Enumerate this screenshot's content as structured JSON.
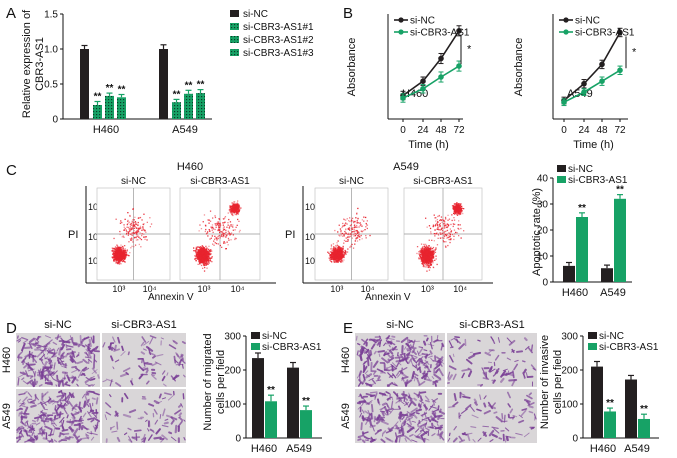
{
  "colors": {
    "black": "#231f20",
    "green": "#17a266",
    "dot_red": "#e8242f",
    "well": "#d9d6d8",
    "stain": "#7a3f96"
  },
  "panel_letters": [
    "A",
    "B",
    "C",
    "D",
    "E"
  ],
  "chart_data": [
    {
      "id": "A",
      "type": "bar",
      "ylabel": [
        "Relative expression of",
        "CBR3-AS1"
      ],
      "categories": [
        "H460",
        "A549"
      ],
      "ylim": [
        0,
        1.5
      ],
      "yticks": [
        "0",
        "0.5",
        "1.0",
        "1.5"
      ],
      "ytick_values": [
        0,
        0.5,
        1.0,
        1.5
      ],
      "series": [
        {
          "name": "si-NC",
          "values": [
            1.0,
            1.0
          ],
          "errors": [
            0.05,
            0.06
          ],
          "color": "#231f20",
          "pattern": false
        },
        {
          "name": "si-CBR3-AS1#1",
          "values": [
            0.2,
            0.24
          ],
          "errors": [
            0.05,
            0.04
          ],
          "color": "#17a266",
          "pattern": true
        },
        {
          "name": "si-CBR3-AS1#2",
          "values": [
            0.33,
            0.36
          ],
          "errors": [
            0.04,
            0.05
          ],
          "color": "#17a266",
          "pattern": true
        },
        {
          "name": "si-CBR3-AS1#3",
          "values": [
            0.31,
            0.37
          ],
          "errors": [
            0.04,
            0.05
          ],
          "color": "#17a266",
          "pattern": true
        }
      ],
      "significance": [
        [
          "**",
          "**",
          "**"
        ],
        [
          "**",
          "**",
          "**"
        ]
      ]
    },
    {
      "id": "B-H460",
      "type": "line",
      "inset_label": "H460",
      "ylabel": "Absorbance",
      "xlabel": "Time (h)",
      "x": [
        0,
        24,
        48,
        72
      ],
      "xticks": [
        "0",
        "24",
        "48",
        "72"
      ],
      "series": [
        {
          "name": "si-NC",
          "values": [
            0.28,
            0.45,
            0.72,
            1.05
          ],
          "errors": [
            0.05,
            0.05,
            0.06,
            0.06
          ],
          "color": "#231f20"
        },
        {
          "name": "si-CBR3-AS1",
          "values": [
            0.25,
            0.36,
            0.5,
            0.63
          ],
          "errors": [
            0.05,
            0.05,
            0.06,
            0.06
          ],
          "color": "#17a266"
        }
      ],
      "significance": "*"
    },
    {
      "id": "B-A549",
      "type": "line",
      "inset_label": "A549",
      "ylabel": "Absorbance",
      "xlabel": "Time (h)",
      "x": [
        0,
        24,
        48,
        72
      ],
      "xticks": [
        "0",
        "24",
        "48",
        "72"
      ],
      "series": [
        {
          "name": "si-NC",
          "values": [
            0.22,
            0.42,
            0.65,
            1.03
          ],
          "errors": [
            0.04,
            0.05,
            0.05,
            0.05
          ],
          "color": "#231f20"
        },
        {
          "name": "si-CBR3-AS1",
          "values": [
            0.2,
            0.32,
            0.45,
            0.58
          ],
          "errors": [
            0.04,
            0.04,
            0.05,
            0.05
          ],
          "color": "#17a266"
        }
      ],
      "significance": "*"
    },
    {
      "id": "C-bar",
      "type": "bar",
      "ylabel": "Apoptotic rate (%)",
      "categories": [
        "H460",
        "A549"
      ],
      "ylim": [
        0,
        40
      ],
      "yticks": [
        "0",
        "10",
        "20",
        "30",
        "40"
      ],
      "ytick_values": [
        0,
        10,
        20,
        30,
        40
      ],
      "series": [
        {
          "name": "si-NC",
          "values": [
            6.2,
            5.3
          ],
          "errors": [
            1.3,
            1.2
          ],
          "color": "#231f20"
        },
        {
          "name": "si-CBR3-AS1",
          "values": [
            25.0,
            32.0
          ],
          "errors": [
            1.6,
            1.6
          ],
          "color": "#17a266"
        }
      ],
      "significance": [
        "**",
        "**"
      ]
    },
    {
      "id": "D-bar",
      "type": "bar",
      "ylabel": [
        "Number of migrated",
        "cells per field"
      ],
      "categories": [
        "H460",
        "A549"
      ],
      "ylim": [
        0,
        300
      ],
      "yticks": [
        "0",
        "100",
        "200",
        "300"
      ],
      "ytick_values": [
        0,
        100,
        200,
        300
      ],
      "series": [
        {
          "name": "si-NC",
          "values": [
            235,
            207
          ],
          "errors": [
            15,
            15
          ],
          "color": "#231f20"
        },
        {
          "name": "si-CBR3-AS1",
          "values": [
            108,
            82
          ],
          "errors": [
            18,
            12
          ],
          "color": "#17a266"
        }
      ],
      "significance": [
        "**",
        "**"
      ]
    },
    {
      "id": "E-bar",
      "type": "bar",
      "ylabel": [
        "Number of invasive",
        "cells per field"
      ],
      "categories": [
        "H460",
        "A549"
      ],
      "ylim": [
        0,
        300
      ],
      "yticks": [
        "0",
        "100",
        "200",
        "300"
      ],
      "ytick_values": [
        0,
        100,
        200,
        300
      ],
      "series": [
        {
          "name": "si-NC",
          "values": [
            210,
            172
          ],
          "errors": [
            15,
            12
          ],
          "color": "#231f20"
        },
        {
          "name": "si-CBR3-AS1",
          "values": [
            78,
            56
          ],
          "errors": [
            10,
            14
          ],
          "color": "#17a266"
        }
      ],
      "significance": [
        "**",
        "**"
      ]
    }
  ],
  "flow": {
    "groups": [
      {
        "title": "H460",
        "conditions": [
          "si-NC",
          "si-CBR3-AS1"
        ]
      },
      {
        "title": "A549",
        "conditions": [
          "si-NC",
          "si-CBR3-AS1"
        ]
      }
    ],
    "ylabel": "PI",
    "xlabel": "Annexin V",
    "yticks": [
      "10⁴",
      "10³",
      "10²"
    ],
    "xticks": [
      "10³",
      "10⁴"
    ]
  },
  "micro": {
    "D": {
      "columns": [
        "si-NC",
        "si-CBR3-AS1"
      ],
      "rows": [
        "H460",
        "A549"
      ]
    },
    "E": {
      "columns": [
        "si-NC",
        "si-CBR3-AS1"
      ],
      "rows": [
        "H460",
        "A549"
      ]
    }
  }
}
